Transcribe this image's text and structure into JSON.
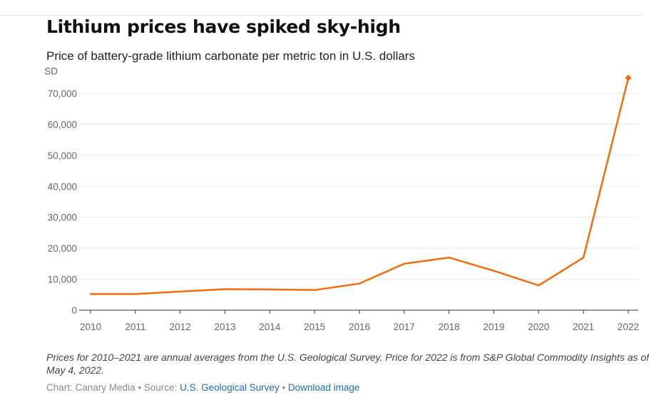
{
  "header": {
    "title": "Lithium prices have spiked sky-high",
    "subtitle": "Price of battery-grade lithium carbonate per metric ton in U.S. dollars"
  },
  "chart_data": {
    "type": "line",
    "title": "Lithium prices have spiked sky-high",
    "subtitle": "Price of battery-grade lithium carbonate per metric ton in U.S. dollars",
    "ylabel": "SD",
    "xlabel": "",
    "categories": [
      "2010",
      "2011",
      "2012",
      "2013",
      "2014",
      "2015",
      "2016",
      "2017",
      "2018",
      "2019",
      "2020",
      "2021",
      "2022"
    ],
    "series": [
      {
        "values": [
          5200,
          5200,
          6000,
          6800,
          6700,
          6500,
          8600,
          15000,
          17000,
          12700,
          8000,
          17000,
          75000
        ]
      }
    ],
    "yticks": [
      0,
      10000,
      20000,
      30000,
      40000,
      50000,
      60000,
      70000
    ],
    "ytick_labels": [
      "0",
      "10,000",
      "20,000",
      "30,000",
      "40,000",
      "50,000",
      "60,000",
      "70,000"
    ],
    "ylim": [
      0,
      75000
    ],
    "grid": true,
    "legend": "none",
    "last_point_marker": "diamond",
    "colors": {
      "line": "#f26c0d",
      "grid": "#e6e6e6",
      "axis": "#333333"
    }
  },
  "notes": {
    "line1": "Prices for 2010–2021 are annual averages from the U.S. Geological Survey. Price for 2022 is from S&P Global Commodity Insights as of",
    "line2": "May 4, 2022."
  },
  "credits": {
    "chart_by": "Chart: Canary Media",
    "sep1": " • Source: ",
    "source_link": "U.S. Geological Survey",
    "sep2": " • ",
    "download_link": "Download image"
  }
}
